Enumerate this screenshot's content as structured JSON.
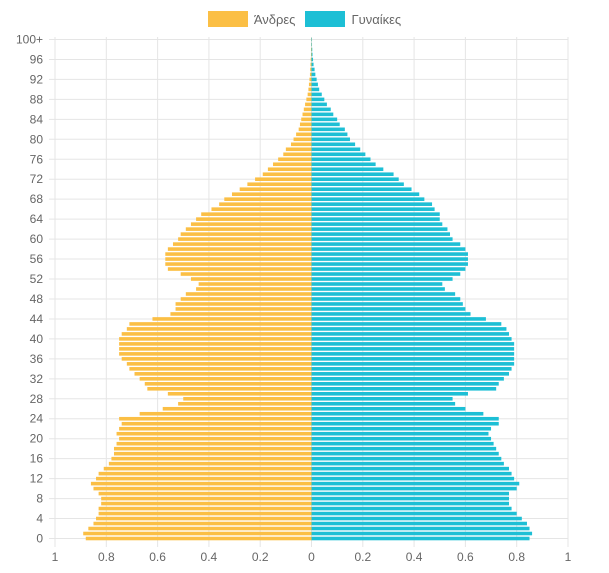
{
  "chart_data": {
    "type": "bar",
    "orientation": "horizontal",
    "title": "",
    "xlabel": "",
    "ylabel": "",
    "legend_position": "top",
    "grid": true,
    "xlim": [
      -1,
      1
    ],
    "x_tick_values": [
      -1,
      -0.8,
      -0.6,
      -0.4,
      -0.2,
      0,
      0.2,
      0.4,
      0.6,
      0.8,
      1
    ],
    "x_tick_labels": [
      "1",
      "0.8",
      "0.6",
      "0.4",
      "0.2",
      "0",
      "0.2",
      "0.4",
      "0.6",
      "0.8",
      "1"
    ],
    "y_tick_labels": [
      "0",
      "4",
      "8",
      "12",
      "16",
      "20",
      "24",
      "28",
      "32",
      "36",
      "40",
      "44",
      "48",
      "52",
      "56",
      "60",
      "64",
      "68",
      "72",
      "76",
      "80",
      "84",
      "88",
      "92",
      "96",
      "100+"
    ],
    "categories": [
      "0",
      "1",
      "2",
      "3",
      "4",
      "5",
      "6",
      "7",
      "8",
      "9",
      "10",
      "11",
      "12",
      "13",
      "14",
      "15",
      "16",
      "17",
      "18",
      "19",
      "20",
      "21",
      "22",
      "23",
      "24",
      "25",
      "26",
      "27",
      "28",
      "29",
      "30",
      "31",
      "32",
      "33",
      "34",
      "35",
      "36",
      "37",
      "38",
      "39",
      "40",
      "41",
      "42",
      "43",
      "44",
      "45",
      "46",
      "47",
      "48",
      "49",
      "50",
      "51",
      "52",
      "53",
      "54",
      "55",
      "56",
      "57",
      "58",
      "59",
      "60",
      "61",
      "62",
      "63",
      "64",
      "65",
      "66",
      "67",
      "68",
      "69",
      "70",
      "71",
      "72",
      "73",
      "74",
      "75",
      "76",
      "77",
      "78",
      "79",
      "80",
      "81",
      "82",
      "83",
      "84",
      "85",
      "86",
      "87",
      "88",
      "89",
      "90",
      "91",
      "92",
      "93",
      "94",
      "95",
      "96",
      "97",
      "98",
      "99",
      "100+"
    ],
    "series": [
      {
        "name": "Άνδρες",
        "color": "#fbbf45",
        "values": [
          0.88,
          0.89,
          0.87,
          0.85,
          0.84,
          0.83,
          0.83,
          0.82,
          0.82,
          0.83,
          0.85,
          0.86,
          0.84,
          0.83,
          0.81,
          0.79,
          0.78,
          0.77,
          0.77,
          0.76,
          0.75,
          0.76,
          0.75,
          0.74,
          0.75,
          0.67,
          0.58,
          0.52,
          0.5,
          0.56,
          0.64,
          0.65,
          0.67,
          0.69,
          0.71,
          0.72,
          0.74,
          0.75,
          0.75,
          0.75,
          0.75,
          0.74,
          0.72,
          0.71,
          0.62,
          0.55,
          0.53,
          0.53,
          0.51,
          0.49,
          0.45,
          0.44,
          0.47,
          0.51,
          0.56,
          0.57,
          0.57,
          0.57,
          0.56,
          0.54,
          0.52,
          0.51,
          0.49,
          0.47,
          0.45,
          0.43,
          0.39,
          0.36,
          0.34,
          0.31,
          0.28,
          0.25,
          0.22,
          0.19,
          0.17,
          0.15,
          0.13,
          0.11,
          0.1,
          0.08,
          0.07,
          0.06,
          0.05,
          0.045,
          0.04,
          0.035,
          0.03,
          0.025,
          0.02,
          0.015,
          0.012,
          0.01,
          0.008,
          0.006,
          0.005,
          0.004,
          0.003,
          0.002,
          0.002,
          0.001,
          0.001
        ]
      },
      {
        "name": "Γυναίκες",
        "color": "#1dbfd5",
        "values": [
          0.85,
          0.86,
          0.85,
          0.84,
          0.82,
          0.8,
          0.78,
          0.77,
          0.77,
          0.77,
          0.8,
          0.81,
          0.79,
          0.78,
          0.77,
          0.75,
          0.74,
          0.73,
          0.72,
          0.71,
          0.7,
          0.69,
          0.7,
          0.73,
          0.73,
          0.67,
          0.6,
          0.56,
          0.55,
          0.61,
          0.72,
          0.73,
          0.75,
          0.77,
          0.78,
          0.79,
          0.79,
          0.79,
          0.79,
          0.79,
          0.78,
          0.77,
          0.76,
          0.74,
          0.68,
          0.62,
          0.6,
          0.59,
          0.58,
          0.56,
          0.52,
          0.51,
          0.55,
          0.58,
          0.6,
          0.61,
          0.61,
          0.61,
          0.6,
          0.58,
          0.55,
          0.54,
          0.53,
          0.51,
          0.5,
          0.5,
          0.48,
          0.47,
          0.44,
          0.42,
          0.39,
          0.36,
          0.34,
          0.32,
          0.28,
          0.25,
          0.23,
          0.21,
          0.19,
          0.17,
          0.15,
          0.14,
          0.13,
          0.11,
          0.1,
          0.085,
          0.075,
          0.06,
          0.05,
          0.04,
          0.03,
          0.025,
          0.02,
          0.015,
          0.012,
          0.008,
          0.006,
          0.004,
          0.003,
          0.002,
          0.002
        ]
      }
    ]
  }
}
